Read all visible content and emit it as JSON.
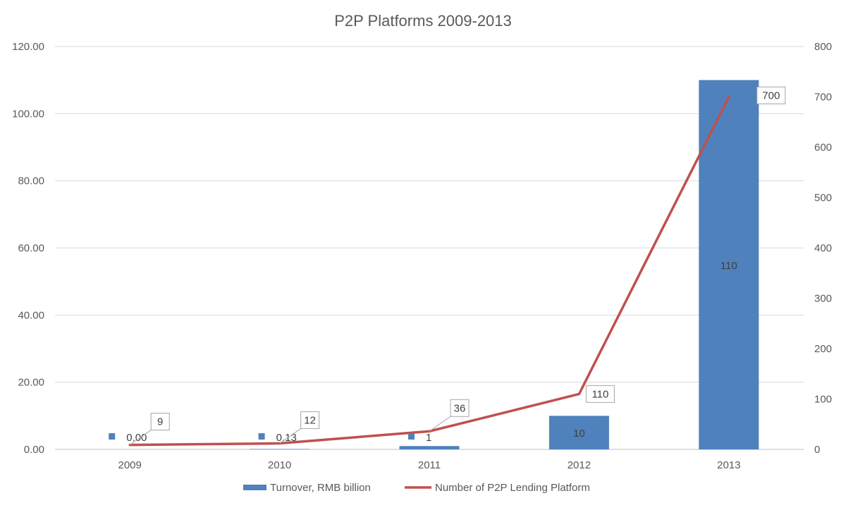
{
  "chart_data": {
    "type": "bar",
    "title": "P2P Platforms 2009-2013",
    "categories": [
      "2009",
      "2010",
      "2011",
      "2012",
      "2013"
    ],
    "series": [
      {
        "name": "Turnover, RMB billion",
        "kind": "bar",
        "axis": "left",
        "color": "#4f81bd",
        "values": [
          0,
          0.13,
          1,
          10,
          110
        ],
        "labels": [
          "0.00",
          "0.13",
          "1",
          "10",
          "110"
        ]
      },
      {
        "name": "Number of P2P Lending Platform",
        "kind": "line",
        "axis": "right",
        "color": "#c0504d",
        "values": [
          9,
          12,
          36,
          110,
          700
        ],
        "labels": [
          "9",
          "12",
          "36",
          "110",
          "700"
        ]
      }
    ],
    "y_left": {
      "min": 0,
      "max": 120,
      "step": 20,
      "ticks": [
        "0.00",
        "20.00",
        "40.00",
        "60.00",
        "80.00",
        "100.00",
        "120.00"
      ]
    },
    "y_right": {
      "min": 0,
      "max": 800,
      "step": 100,
      "ticks": [
        "0",
        "100",
        "200",
        "300",
        "400",
        "500",
        "600",
        "700",
        "800"
      ]
    },
    "legend": "bottom",
    "grid": true
  }
}
